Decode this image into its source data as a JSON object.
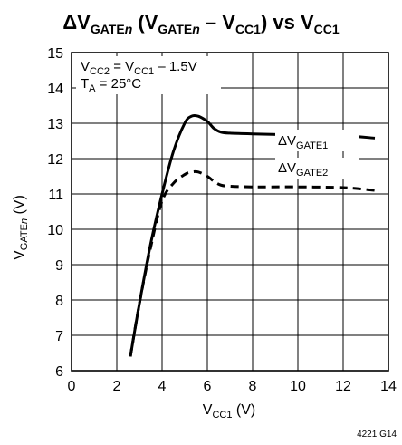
{
  "chart_data": {
    "type": "line",
    "title": "ΔVGATEn (VGATEn – VCC1) vs VCC1",
    "title_parts": {
      "delta": "Δ",
      "v1": "V",
      "sub1": "GATE",
      "n1": "n",
      "mid": " (V",
      "sub2": "GATE",
      "n2": "n",
      "minus": " – V",
      "sub3": "CC1",
      "close": ") vs V",
      "sub4": "CC1"
    },
    "xlabel": {
      "main": "V",
      "sub": "CC1",
      "unit": " (V)"
    },
    "ylabel": {
      "main": "V",
      "sub": "GATE",
      "n": "n",
      "unit": " (V)"
    },
    "xlim": [
      0,
      14
    ],
    "ylim": [
      6,
      15
    ],
    "xticks": [
      "0",
      "2",
      "4",
      "6",
      "8",
      "10",
      "12",
      "14"
    ],
    "yticks": [
      "6",
      "7",
      "8",
      "9",
      "10",
      "11",
      "12",
      "13",
      "14",
      "15"
    ],
    "grid": true,
    "annotations": {
      "cond1": {
        "a": "V",
        "a_sub": "CC2",
        "b": " = V",
        "b_sub": "CC1",
        "c": " – 1.5V"
      },
      "cond2": {
        "a": "T",
        "a_sub": "A",
        "b": " = 25°C"
      }
    },
    "series": [
      {
        "name": "ΔVGATE1",
        "label": {
          "delta": "Δ",
          "v": "V",
          "sub": "GATE1"
        },
        "style": "solid",
        "x": [
          2.6,
          3.0,
          3.5,
          4.0,
          4.5,
          5.0,
          5.3,
          5.6,
          6.0,
          6.3,
          6.6,
          7.0,
          8.0,
          10.0,
          12.0,
          13.4
        ],
        "y": [
          6.4,
          7.9,
          9.6,
          11.0,
          12.2,
          13.0,
          13.2,
          13.2,
          13.05,
          12.85,
          12.75,
          12.72,
          12.7,
          12.67,
          12.65,
          12.58
        ]
      },
      {
        "name": "ΔVGATE2",
        "label": {
          "delta": "Δ",
          "v": "V",
          "sub": "GATE2"
        },
        "style": "dashed",
        "x": [
          2.6,
          3.0,
          3.5,
          4.0,
          4.5,
          5.0,
          5.3,
          5.6,
          6.0,
          6.3,
          6.6,
          7.0,
          8.0,
          10.0,
          12.0,
          13.4
        ],
        "y": [
          6.4,
          7.9,
          9.5,
          10.8,
          11.3,
          11.55,
          11.62,
          11.62,
          11.5,
          11.35,
          11.25,
          11.22,
          11.2,
          11.2,
          11.18,
          11.1
        ]
      }
    ],
    "figure_code": "4221 G14"
  }
}
